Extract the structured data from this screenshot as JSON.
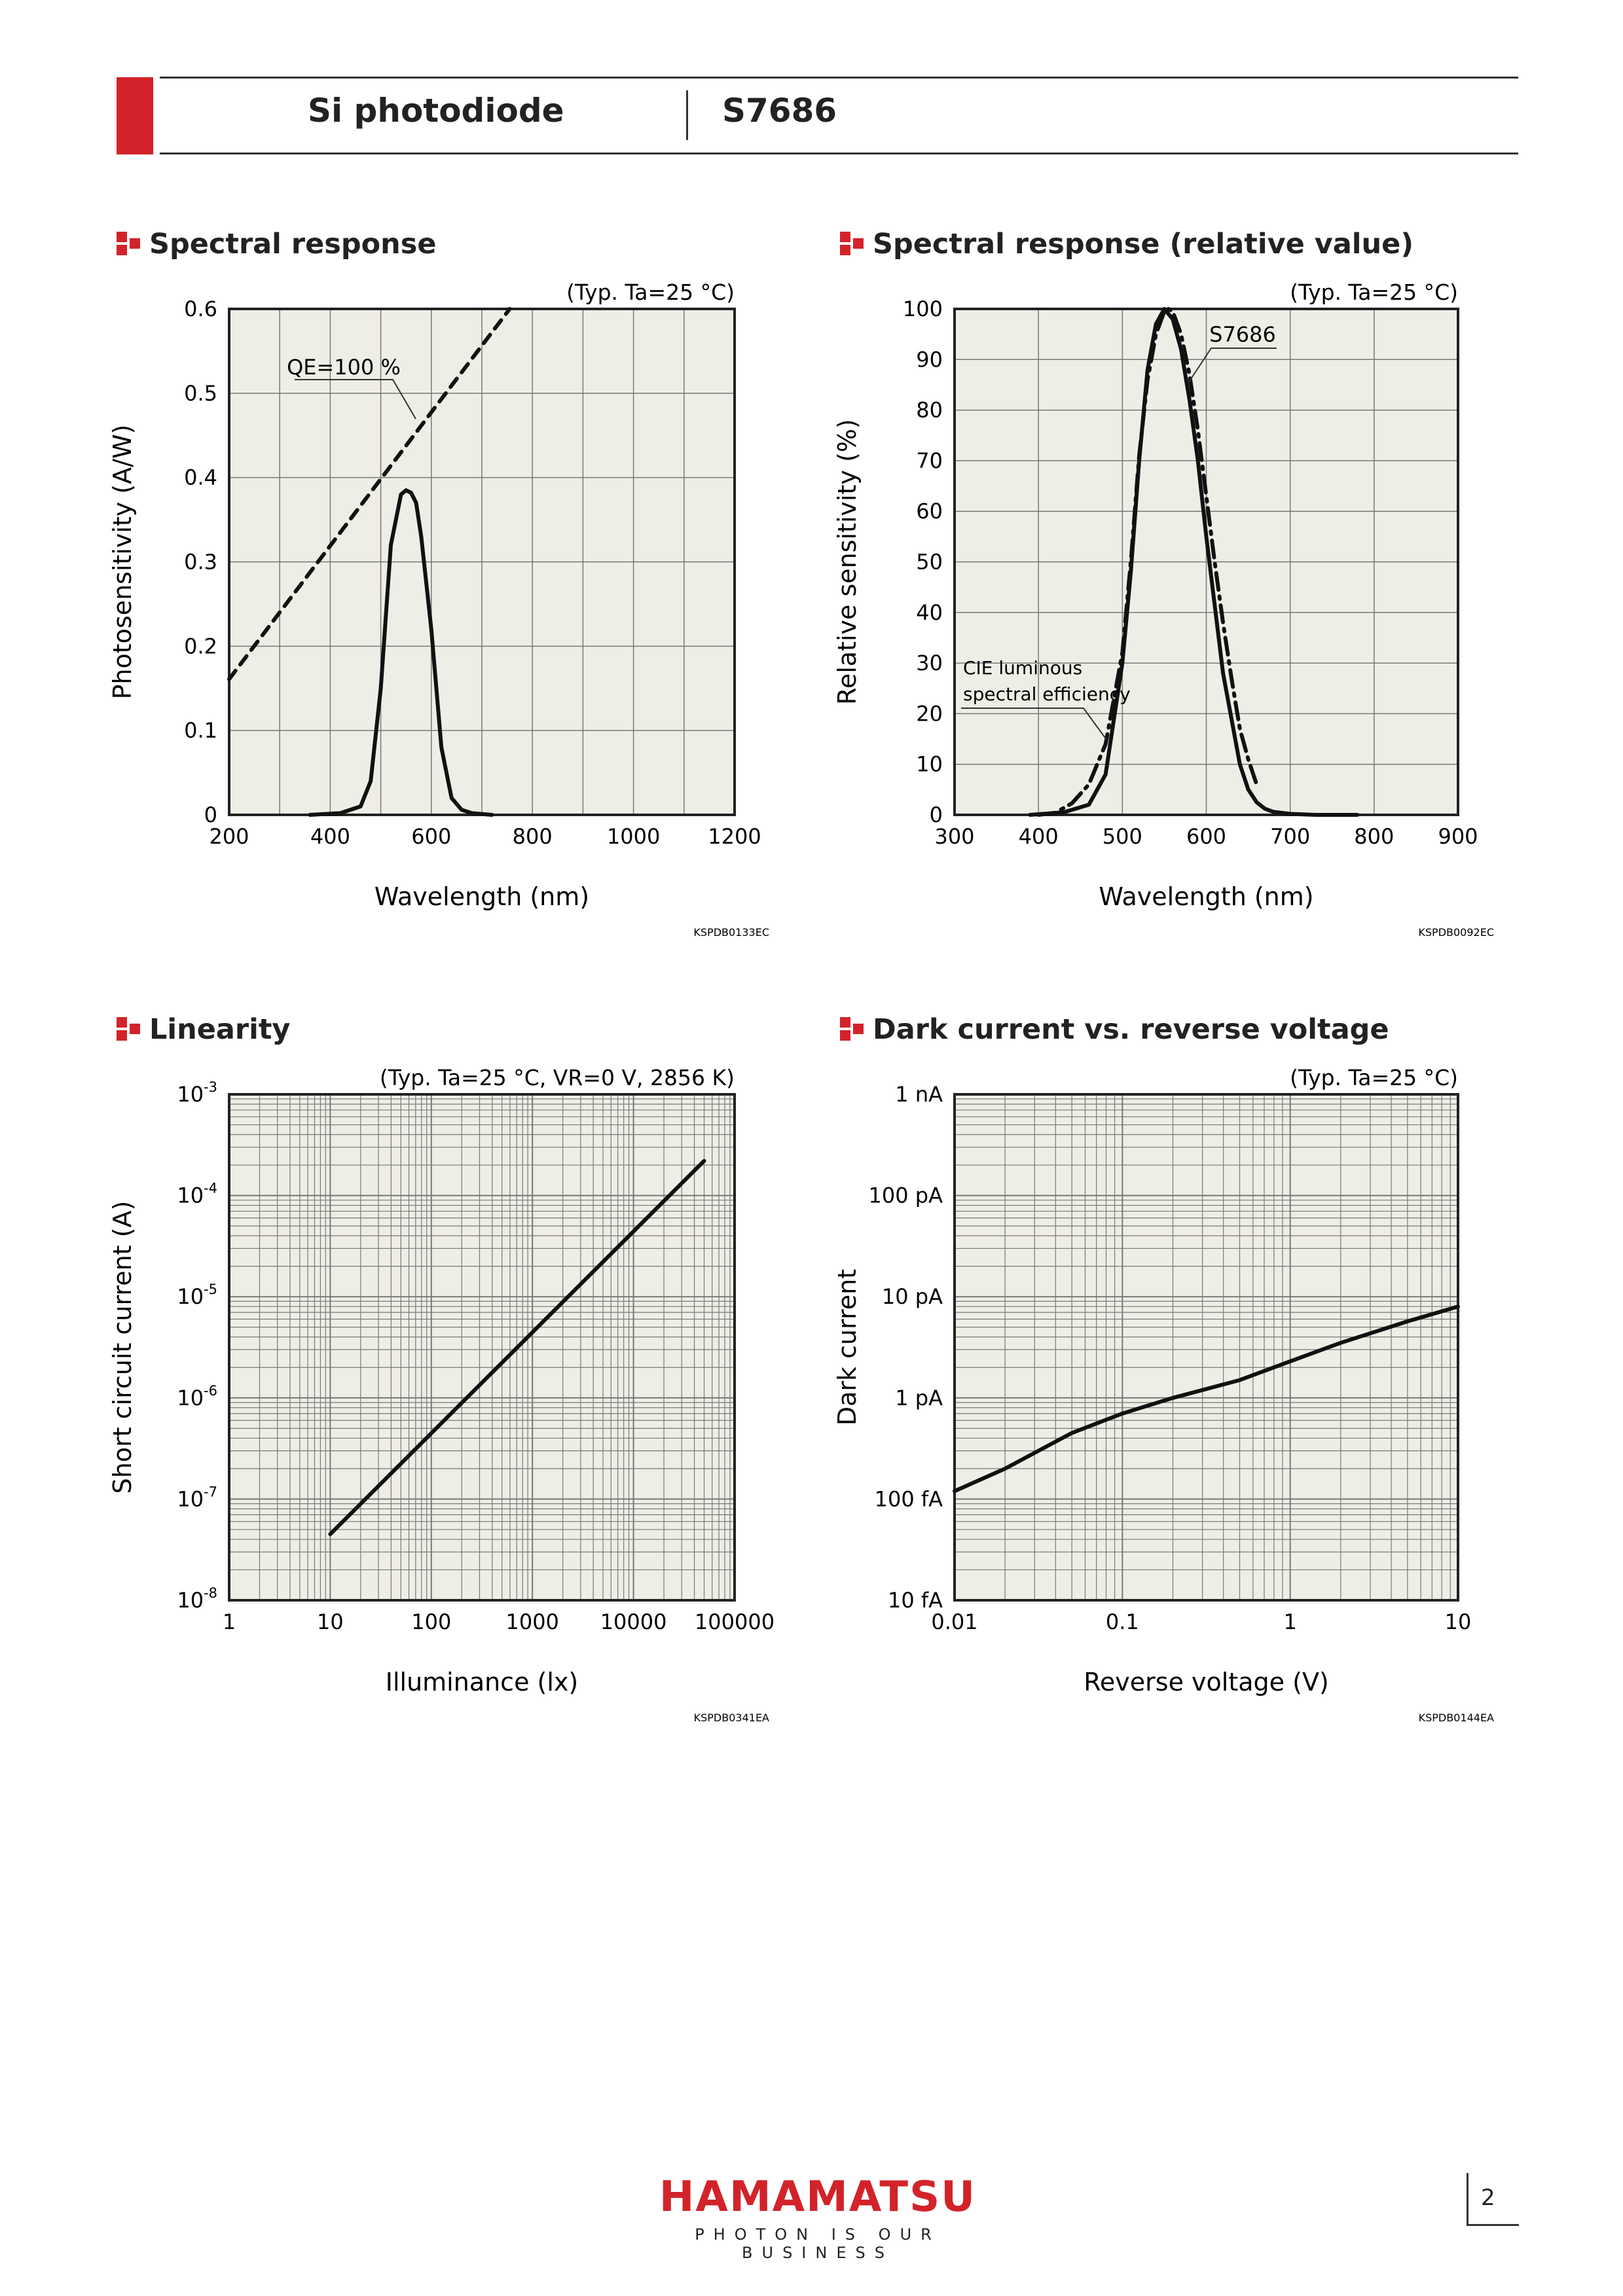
{
  "header": {
    "product_type": "Si photodiode",
    "model": "S7686"
  },
  "footer": {
    "logo": "HAMAMATSU",
    "tagline": "PHOTON IS OUR BUSINESS",
    "page_number": "2"
  },
  "colors": {
    "brand_red": "#d2232a",
    "plot_bg": "#efeee6"
  },
  "chart_data": [
    {
      "type": "line",
      "section_title": "Spectral response",
      "title": "",
      "condition": "(Typ. Ta=25 °C)",
      "xlabel": "Wavelength (nm)",
      "ylabel": "Photosensitivity (A/W)",
      "xlim": [
        200,
        1200
      ],
      "ylim": [
        0,
        0.6
      ],
      "xticks": [
        "200",
        "400",
        "600",
        "800",
        "1000",
        "1200"
      ],
      "yticks": [
        "0",
        "0.1",
        "0.2",
        "0.3",
        "0.4",
        "0.5",
        "0.6"
      ],
      "grid": true,
      "annotation": "QE=100 %",
      "code": "KSPDB0133EC",
      "series": [
        {
          "name": "QE=100 %",
          "style": "dashed",
          "x": [
            200,
            755
          ],
          "y": [
            0.161,
            0.6
          ]
        },
        {
          "style": "solid",
          "x": [
            360,
            420,
            460,
            480,
            500,
            520,
            540,
            550,
            560,
            570,
            580,
            600,
            620,
            640,
            660,
            680,
            700,
            720
          ],
          "y": [
            0,
            0.002,
            0.01,
            0.04,
            0.15,
            0.32,
            0.38,
            0.385,
            0.382,
            0.37,
            0.33,
            0.22,
            0.08,
            0.02,
            0.006,
            0.002,
            0.001,
            0
          ]
        }
      ]
    },
    {
      "type": "line",
      "section_title": "Spectral response (relative value)",
      "title": "",
      "condition": "(Typ. Ta=25 °C)",
      "xlabel": "Wavelength (nm)",
      "ylabel": "Relative sensitivity (%)",
      "xlim": [
        300,
        900
      ],
      "ylim": [
        0,
        100
      ],
      "xticks": [
        "300",
        "400",
        "500",
        "600",
        "700",
        "800",
        "900"
      ],
      "yticks": [
        "0",
        "10",
        "20",
        "30",
        "40",
        "50",
        "60",
        "70",
        "80",
        "90",
        "100"
      ],
      "grid": true,
      "annotations": [
        "S7686",
        "CIE luminous",
        "spectral efficiency"
      ],
      "code": "KSPDB0092EC",
      "series": [
        {
          "name": "S7686",
          "style": "solid",
          "x": [
            390,
            430,
            460,
            480,
            500,
            510,
            520,
            530,
            540,
            550,
            560,
            570,
            580,
            590,
            600,
            620,
            640,
            650,
            660,
            670,
            680,
            700,
            730,
            750,
            780
          ],
          "y": [
            0,
            0.5,
            2,
            8,
            30,
            48,
            70,
            88,
            97,
            100,
            98,
            92,
            82,
            70,
            55,
            28,
            10,
            5,
            2.5,
            1.2,
            0.6,
            0.2,
            0,
            0,
            0
          ]
        },
        {
          "name": "CIE luminous spectral efficiency",
          "style": "dashdot",
          "x": [
            400,
            420,
            440,
            460,
            480,
            500,
            510,
            520,
            530,
            540,
            550,
            555,
            560,
            570,
            580,
            590,
            600,
            610,
            620,
            630,
            640,
            650,
            660
          ],
          "y": [
            0,
            0.4,
            2.3,
            6,
            14,
            32,
            50,
            71,
            86,
            95,
            99.5,
            100,
            99.5,
            95,
            87,
            76,
            63,
            50,
            38,
            27,
            17,
            11,
            6
          ]
        }
      ]
    },
    {
      "type": "line",
      "section_title": "Linearity",
      "title": "",
      "condition": "(Typ. Ta=25 °C, VR=0 V, 2856 K)",
      "xlabel": "Illuminance (lx)",
      "ylabel": "Short circuit current (A)",
      "xscale": "log",
      "yscale": "log",
      "xlim": [
        1,
        100000
      ],
      "ylim": [
        1e-08,
        0.001
      ],
      "xticks": [
        "1",
        "10",
        "100",
        "1000",
        "10000",
        "100000"
      ],
      "yticks": [
        "10-8",
        "10-7",
        "10-6",
        "10-5",
        "10-4",
        "10-3"
      ],
      "grid": true,
      "code": "KSPDB0341EA",
      "series": [
        {
          "style": "solid",
          "x": [
            10,
            50000
          ],
          "y": [
            4.5e-08,
            0.00022
          ]
        }
      ]
    },
    {
      "type": "line",
      "section_title": "Dark current vs. reverse voltage",
      "title": "",
      "condition": "(Typ. Ta=25 °C)",
      "xlabel": "Reverse voltage (V)",
      "ylabel": "Dark current",
      "xscale": "log",
      "yscale": "log",
      "xlim": [
        0.01,
        10
      ],
      "ylim": [
        1e-14,
        1e-09
      ],
      "xticks": [
        "0.01",
        "0.1",
        "1",
        "10"
      ],
      "yticks": [
        "10 fA",
        "100 fA",
        "1 pA",
        "10 pA",
        "100 pA",
        "1 nA"
      ],
      "grid": true,
      "code": "KSPDB0144EA",
      "series": [
        {
          "style": "solid",
          "x": [
            0.01,
            0.02,
            0.05,
            0.1,
            0.2,
            0.5,
            1,
            2,
            5,
            10
          ],
          "y": [
            1.2e-13,
            2e-13,
            4.5e-13,
            7e-13,
            1e-12,
            1.5e-12,
            2.3e-12,
            3.5e-12,
            5.7e-12,
            8e-12
          ]
        }
      ]
    }
  ]
}
